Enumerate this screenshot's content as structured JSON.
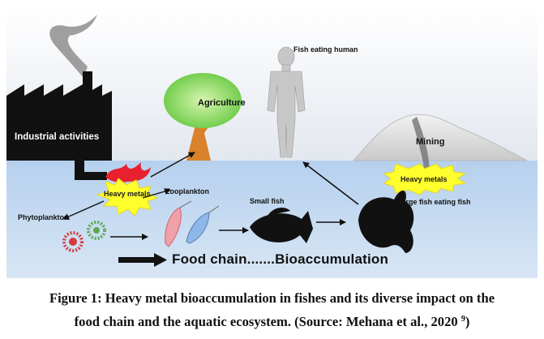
{
  "labels": {
    "industrial": "Industrial activities",
    "heavy_metals_left": "Heavy metals",
    "agriculture": "Agriculture",
    "human": "Fish eating human",
    "mining": "Mining",
    "heavy_metals_right": "Heavy metals",
    "zooplankton": "Zooplankton",
    "phytoplankton": "Phytoplankton",
    "small_fish": "Small fish",
    "large_fish": "Large fish eating fish",
    "food_chain": "Food chain.......Bioaccumulation"
  },
  "caption": {
    "line1": "Figure 1: Heavy metal bioaccumulation in fishes and its diverse impact on the",
    "line2": "food chain and the aquatic ecosystem. (Source: Mehana et al., 2020 ",
    "ref": "9",
    "end": ")"
  },
  "colors": {
    "sky": "#eef2f7",
    "water": "#a9c8ea",
    "factory": "#111111",
    "star": "#ffff2e",
    "flame": "#e8212f",
    "tree_green": "#6fd247",
    "trunk": "#d9822b"
  }
}
